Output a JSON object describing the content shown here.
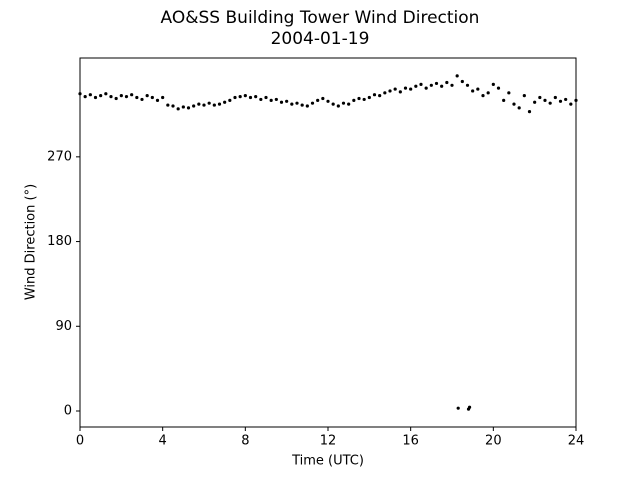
{
  "chart_data": {
    "type": "scatter",
    "title": "AO&SS Building Tower Wind Direction",
    "subtitle": "2004-01-19",
    "x_label": "Time (UTC)",
    "y_label": "Wind Direction (°)",
    "xlim": [
      0,
      24
    ],
    "ylim": [
      -17,
      375
    ],
    "xticks": [
      0,
      4,
      8,
      12,
      16,
      20,
      24
    ],
    "yticks": [
      0,
      90,
      180,
      270
    ],
    "color": "#000000",
    "x": [
      0,
      0.25,
      0.5,
      0.75,
      1,
      1.25,
      1.5,
      1.75,
      2,
      2.25,
      2.5,
      2.75,
      3,
      3.25,
      3.5,
      3.75,
      4,
      4.25,
      4.5,
      4.75,
      5,
      5.25,
      5.5,
      5.75,
      6,
      6.25,
      6.5,
      6.75,
      7,
      7.25,
      7.5,
      7.75,
      8,
      8.25,
      8.5,
      8.75,
      9,
      9.25,
      9.5,
      9.75,
      10,
      10.25,
      10.5,
      10.75,
      11,
      11.25,
      11.5,
      11.75,
      12,
      12.25,
      12.5,
      12.75,
      13,
      13.25,
      13.5,
      13.75,
      14,
      14.25,
      14.5,
      14.75,
      15,
      15.25,
      15.5,
      15.75,
      16,
      16.25,
      16.5,
      16.75,
      17,
      17.25,
      17.5,
      17.75,
      18,
      18.25,
      18.5,
      18.75,
      19,
      19.25,
      19.5,
      19.75,
      20,
      20.25,
      20.5,
      20.75,
      21,
      21.25,
      21.5,
      21.75,
      22,
      22.25,
      22.5,
      22.75,
      23,
      23.25,
      23.5,
      23.75,
      24,
      18.3,
      18.8,
      18.85
    ],
    "values": [
      337,
      334,
      336,
      333,
      335,
      337,
      334,
      332,
      335,
      334,
      336,
      333,
      331,
      335,
      333,
      330,
      333,
      325,
      324,
      321,
      323,
      322,
      324,
      326,
      325,
      327,
      325,
      326,
      328,
      330,
      333,
      334,
      335,
      333,
      334,
      331,
      333,
      330,
      331,
      328,
      329,
      326,
      327,
      325,
      324,
      327,
      330,
      332,
      329,
      326,
      324,
      327,
      326,
      330,
      332,
      331,
      333,
      336,
      335,
      338,
      340,
      342,
      339,
      343,
      342,
      345,
      347,
      343,
      346,
      348,
      345,
      349,
      346,
      356,
      350,
      346,
      340,
      342,
      335,
      338,
      347,
      343,
      330,
      338,
      326,
      322,
      335,
      318,
      328,
      333,
      330,
      327,
      333,
      329,
      331,
      326,
      330,
      3,
      2,
      4
    ]
  }
}
